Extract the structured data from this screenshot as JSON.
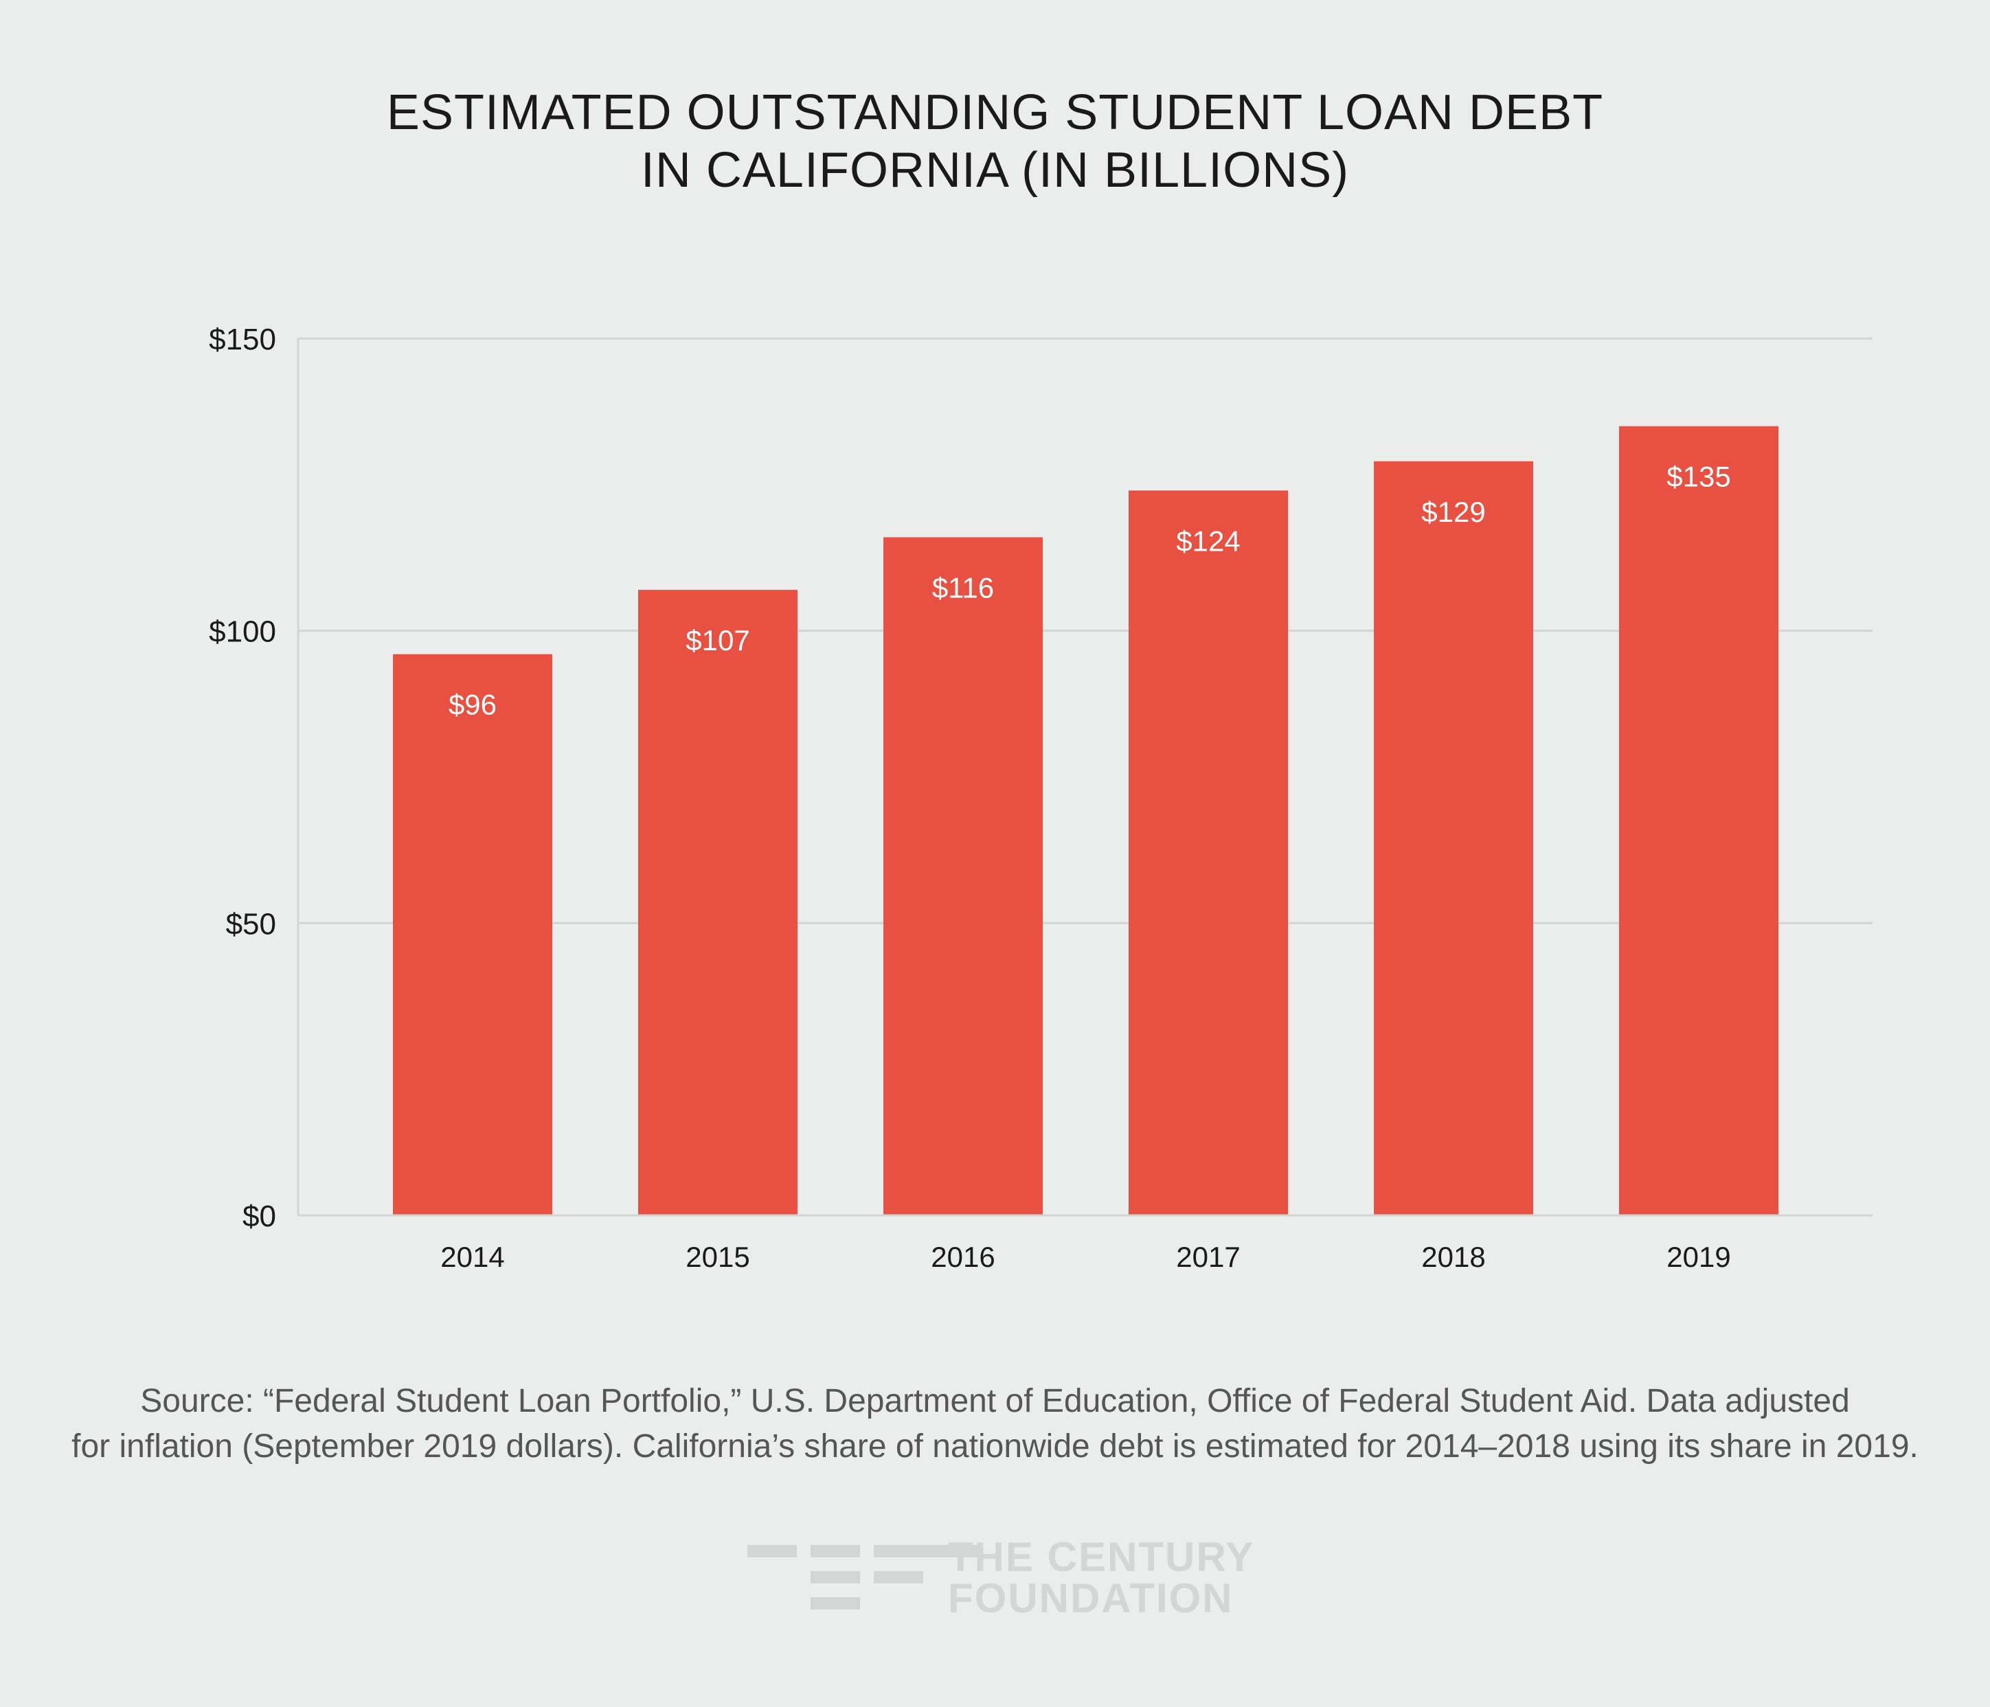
{
  "title": {
    "line1": "ESTIMATED OUTSTANDING STUDENT LOAN DEBT",
    "line2": "IN CALIFORNIA (IN BILLIONS)"
  },
  "chart_data": {
    "type": "bar",
    "title": "ESTIMATED OUTSTANDING STUDENT LOAN DEBT IN CALIFORNIA (IN BILLIONS)",
    "categories": [
      "2014",
      "2015",
      "2016",
      "2017",
      "2018",
      "2019"
    ],
    "values": [
      96,
      107,
      116,
      124,
      129,
      135
    ],
    "value_labels": [
      "$96",
      "$107",
      "$116",
      "$124",
      "$129",
      "$135"
    ],
    "ylim": [
      0,
      150
    ],
    "yticks": [
      0,
      50,
      100,
      150
    ],
    "ytick_labels": [
      "$0",
      "$50",
      "$100",
      "$150"
    ],
    "xlabel": "",
    "ylabel": "",
    "grid": true,
    "legend": "none",
    "bar_color": "#e85142",
    "grid_color": "#d2d5d4",
    "label_color": "#ffffff"
  },
  "source": {
    "line1": "Source: “Federal Student Loan Portfolio,” U.S. Department of Education, Office of Federal Student Aid. Data adjusted",
    "line2": "for inflation (September 2019 dollars). California’s share of nationwide debt is estimated for 2014–2018 using its share in 2019."
  },
  "logo": {
    "line1": "THE CENTURY",
    "line2": "FOUNDATION"
  }
}
